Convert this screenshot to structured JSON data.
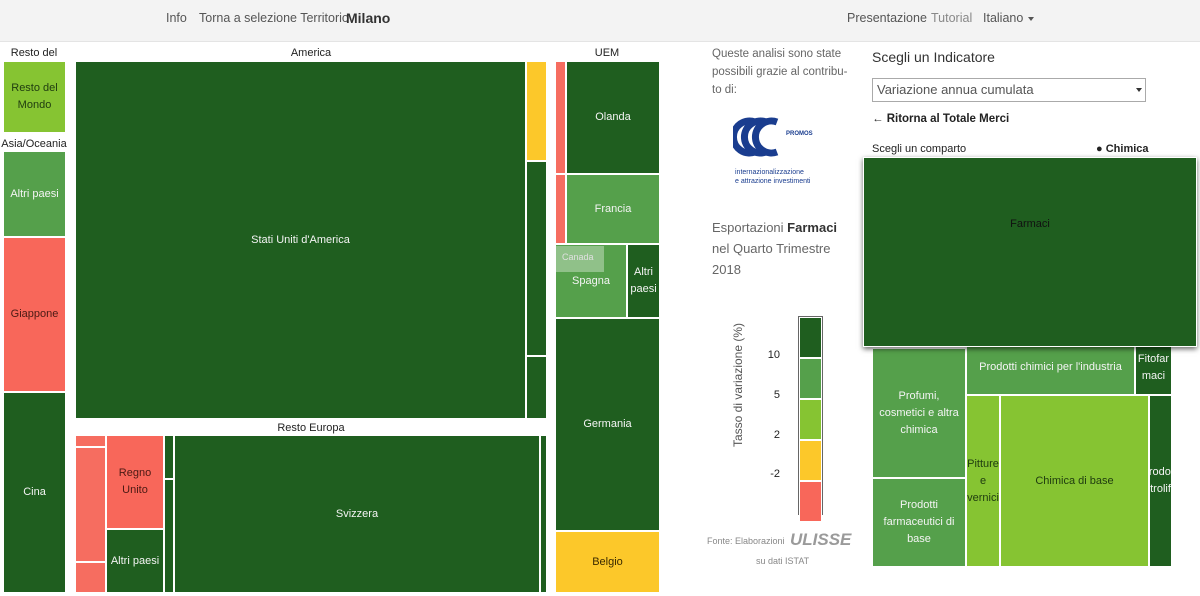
{
  "nav": {
    "info": "Info",
    "back": "Torna a selezione Territorio",
    "city": "Milano",
    "presentation": "Presentazione",
    "tutorial": "Tutorial",
    "language": "Italiano"
  },
  "treemap": {
    "regions": {
      "rest_world": "Resto del",
      "america": "America",
      "uem": "UEM",
      "asia": "Asia/Oceania",
      "rest_europe": "Resto Europa"
    },
    "cells": {
      "rest_world": "Resto del Mondo",
      "asia_other": "Altri paesi",
      "japan": "Giappone",
      "china": "Cina",
      "usa": "Stati Uniti d'America",
      "canada": "Canada",
      "netherlands": "Olanda",
      "france": "Francia",
      "spain": "Spagna",
      "uem_other": "Altri paesi",
      "germany": "Germania",
      "belgium": "Belgio",
      "uk": "Regno Unito",
      "europe_other": "Altri paesi",
      "switzerland": "Svizzera"
    }
  },
  "credits": {
    "text": "Queste analisi sono state possibili grazie al contribu- to di:",
    "logo_small": "PROMOS",
    "logo_line1": "internazionalizzazione",
    "logo_line2": "e attrazione investimenti"
  },
  "chart_title": {
    "prefix": "Esportazioni",
    "product": "Farmaci",
    "suffix": "nel Quarto Trimestre 2018"
  },
  "legend": {
    "axis_label": "Tasso di variazione (%)",
    "ticks": [
      "10",
      "5",
      "2",
      "-2"
    ],
    "colors": [
      "#1f5e1f",
      "#55a04b",
      "#86c432",
      "#fcc82a",
      "#f8675a"
    ]
  },
  "source": {
    "prefix": "Fonte: Elaborazioni",
    "brand": "ULISSE",
    "suffix": "su dati ISTAT"
  },
  "indicator": {
    "title": "Scegli un Indicatore",
    "selected": "Variazione annua cumulata",
    "back_link": "Ritorna al Totale Merci",
    "sector_label": "Scegli un comparto",
    "sector_current": "Chimica"
  },
  "sector_treemap": {
    "farmaci": "Farmaci",
    "profumi": "Profumi, cosmetici e altra chimica",
    "industria": "Prodotti chimici per l'industria",
    "fitofarmaci": "Fitofar maci",
    "pitture": "Pitture e vernici",
    "chimica_base": "Chimica di base",
    "petroliferi": "Prodotti petroliferi",
    "farmaceutici": "Prodotti farmaceutici di base"
  }
}
